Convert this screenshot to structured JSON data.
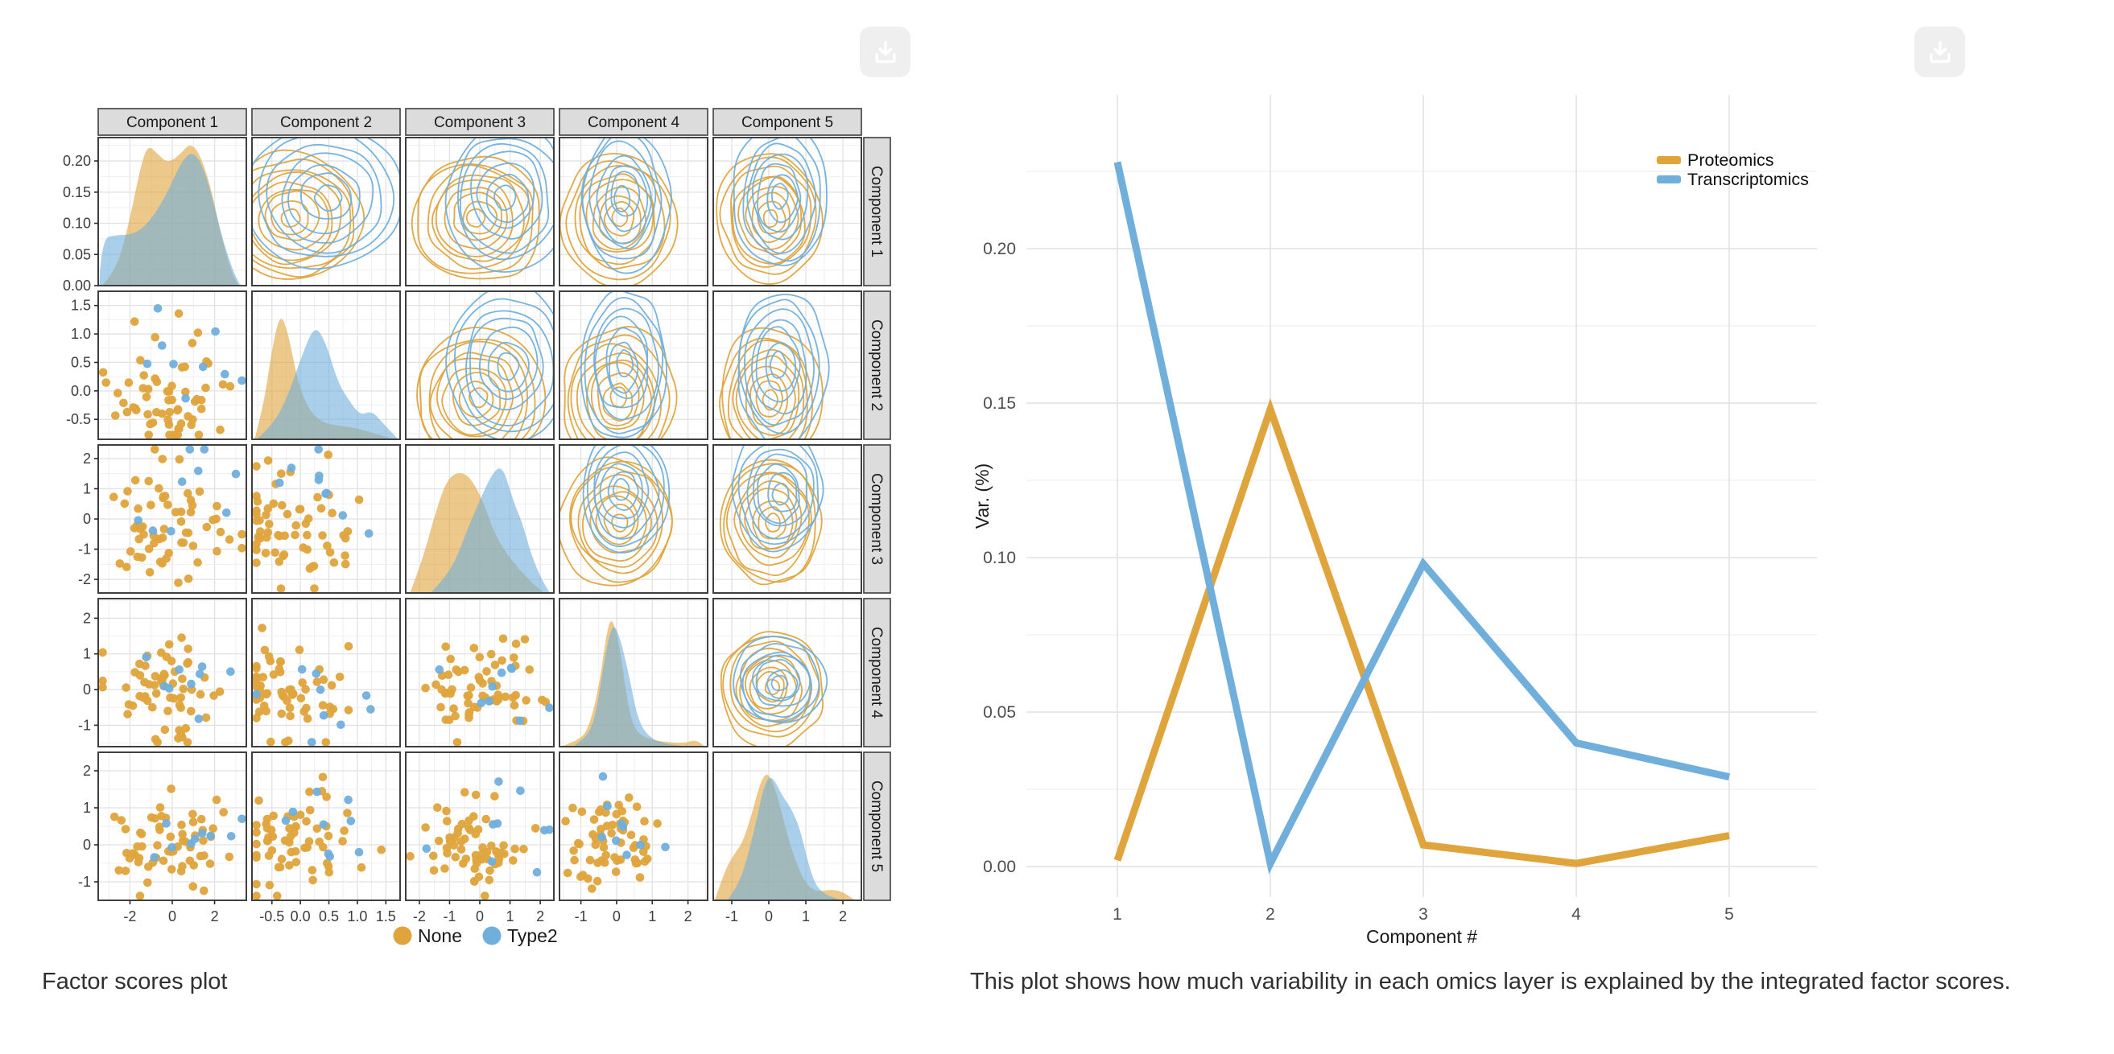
{
  "ui": {
    "background": "#ffffff",
    "download_button": {
      "color": "#3A80C2",
      "icon": "download-icon",
      "icon_color": "#ffffff"
    }
  },
  "colors": {
    "orange": "#DFA43C",
    "blue": "#70AFDC",
    "grid_major": "#E2E2E2",
    "grid_minor": "#EFEFEF",
    "panel_border": "#3F3F3F",
    "strip_bg": "#DCDCDC",
    "tick_text": "#3D3D3D",
    "axis_text": "#1A1A1A"
  },
  "left_figure": {
    "caption": "Factor scores plot",
    "legend": [
      {
        "label": "None",
        "color": "#DFA43C"
      },
      {
        "label": "Type2",
        "color": "#70AFDC"
      }
    ]
  },
  "right_figure": {
    "caption": "This plot shows how much variability in each omics layer is explained by the integrated factor scores."
  },
  "chart_data": [
    {
      "type": "pairs_matrix",
      "title": "Factor scores plot",
      "diagonal": "density",
      "upper": "contour",
      "lower": "scatter",
      "seed": 7,
      "variables": [
        {
          "name": "Component 1",
          "range": [
            -3.5,
            3.5
          ],
          "ticks": [
            -2,
            0,
            2
          ],
          "tick_labels": [
            "-2",
            "0",
            "2"
          ]
        },
        {
          "name": "Component 2",
          "range": [
            -0.85,
            1.75
          ],
          "ticks": [
            -0.5,
            0,
            0.5,
            1,
            1.5
          ],
          "tick_labels": [
            "-0.5",
            "0.0",
            "0.5",
            "1.0",
            "1.5"
          ]
        },
        {
          "name": "Component 3",
          "range": [
            -2.45,
            2.45
          ],
          "ticks": [
            -2,
            -1,
            0,
            1,
            2
          ],
          "tick_labels": [
            "-2",
            "-1",
            "0",
            "1",
            "2"
          ]
        },
        {
          "name": "Component 4",
          "range": [
            -1.6,
            2.55
          ],
          "ticks": [
            -1,
            0,
            1,
            2
          ],
          "tick_labels": [
            "-1",
            "0",
            "1",
            "2"
          ]
        },
        {
          "name": "Component 5",
          "range": [
            -1.5,
            2.5
          ],
          "ticks": [
            -1,
            0,
            1,
            2
          ],
          "tick_labels": [
            "-1",
            "0",
            "1",
            "2"
          ]
        }
      ],
      "density_axis": {
        "range": [
          0,
          0.2375
        ],
        "ticks": [
          0,
          0.05,
          0.1,
          0.15,
          0.2
        ],
        "tick_labels": [
          "0.00",
          "0.05",
          "0.10",
          "0.15",
          "0.20"
        ]
      },
      "groups": [
        {
          "name": "None",
          "color": "#DFA43C",
          "n": 62,
          "means": [
            -0.3,
            -0.15,
            -0.1,
            0.05,
            0.05
          ],
          "sds": [
            1.35,
            0.55,
            0.95,
            0.7,
            0.62
          ],
          "rings": 9
        },
        {
          "name": "Type2",
          "color": "#70AFDC",
          "n": 9,
          "means": [
            0.7,
            0.45,
            0.9,
            0.2,
            0.3
          ],
          "sds": [
            1.5,
            0.6,
            0.9,
            0.55,
            0.55
          ],
          "rings": 7
        }
      ],
      "densities": {
        "Component 1": {
          "None": [
            [
              -3.3,
              0
            ],
            [
              -2.7,
              0.02
            ],
            [
              -2.1,
              0.09
            ],
            [
              -1.5,
              0.19
            ],
            [
              -1.15,
              0.225
            ],
            [
              -0.7,
              0.21
            ],
            [
              -0.2,
              0.195
            ],
            [
              0.4,
              0.21
            ],
            [
              0.85,
              0.228
            ],
            [
              1.3,
              0.21
            ],
            [
              1.8,
              0.16
            ],
            [
              2.3,
              0.08
            ],
            [
              2.8,
              0.02
            ],
            [
              3.1,
              0
            ]
          ],
          "Type2": [
            [
              -3.45,
              0
            ],
            [
              -3.35,
              0.075
            ],
            [
              -2.6,
              0.08
            ],
            [
              -2.0,
              0.08
            ],
            [
              -1.4,
              0.09
            ],
            [
              -0.8,
              0.115
            ],
            [
              -0.2,
              0.15
            ],
            [
              0.4,
              0.195
            ],
            [
              0.9,
              0.215
            ],
            [
              1.4,
              0.195
            ],
            [
              1.9,
              0.14
            ],
            [
              2.4,
              0.07
            ],
            [
              2.9,
              0.02
            ],
            [
              3.2,
              0
            ]
          ]
        },
        "Component 2": {
          "None": [
            [
              -0.8,
              0
            ],
            [
              -0.65,
              0.25
            ],
            [
              -0.5,
              0.7
            ],
            [
              -0.35,
              1.0
            ],
            [
              -0.2,
              0.8
            ],
            [
              -0.05,
              0.45
            ],
            [
              0.15,
              0.22
            ],
            [
              0.4,
              0.12
            ],
            [
              0.7,
              0.1
            ],
            [
              1.0,
              0.08
            ],
            [
              1.3,
              0.04
            ],
            [
              1.6,
              0
            ]
          ],
          "Type2": [
            [
              -0.75,
              0
            ],
            [
              -0.5,
              0.1
            ],
            [
              -0.25,
              0.3
            ],
            [
              0.0,
              0.62
            ],
            [
              0.25,
              0.9
            ],
            [
              0.45,
              0.75
            ],
            [
              0.65,
              0.45
            ],
            [
              0.85,
              0.3
            ],
            [
              1.05,
              0.18
            ],
            [
              1.25,
              0.22
            ],
            [
              1.45,
              0.12
            ],
            [
              1.7,
              0
            ]
          ]
        },
        "Component 3": {
          "None": [
            [
              -2.3,
              0
            ],
            [
              -1.9,
              0.25
            ],
            [
              -1.5,
              0.6
            ],
            [
              -1.1,
              0.88
            ],
            [
              -0.7,
              0.95
            ],
            [
              -0.3,
              0.9
            ],
            [
              0.1,
              0.72
            ],
            [
              0.5,
              0.45
            ],
            [
              0.9,
              0.3
            ],
            [
              1.3,
              0.18
            ],
            [
              1.7,
              0.08
            ],
            [
              2.1,
              0
            ]
          ],
          "Type2": [
            [
              -1.6,
              0
            ],
            [
              -1.2,
              0.1
            ],
            [
              -0.8,
              0.25
            ],
            [
              -0.4,
              0.5
            ],
            [
              0.0,
              0.72
            ],
            [
              0.4,
              0.93
            ],
            [
              0.75,
              1.0
            ],
            [
              1.1,
              0.72
            ],
            [
              1.4,
              0.55
            ],
            [
              1.7,
              0.3
            ],
            [
              2.0,
              0.12
            ],
            [
              2.3,
              0
            ]
          ]
        },
        "Component 4": {
          "None": [
            [
              -1.5,
              0
            ],
            [
              -1.1,
              0.04
            ],
            [
              -0.8,
              0.12
            ],
            [
              -0.5,
              0.45
            ],
            [
              -0.25,
              0.95
            ],
            [
              -0.1,
              1.0
            ],
            [
              0.1,
              0.75
            ],
            [
              0.3,
              0.35
            ],
            [
              0.5,
              0.12
            ],
            [
              0.9,
              0.05
            ],
            [
              1.4,
              0.03
            ],
            [
              1.9,
              0.02
            ],
            [
              2.2,
              0.05
            ],
            [
              2.45,
              0
            ]
          ],
          "Type2": [
            [
              -1.2,
              0
            ],
            [
              -0.9,
              0.05
            ],
            [
              -0.6,
              0.2
            ],
            [
              -0.3,
              0.75
            ],
            [
              -0.1,
              0.97
            ],
            [
              0.1,
              0.85
            ],
            [
              0.35,
              0.55
            ],
            [
              0.6,
              0.2
            ],
            [
              0.9,
              0.07
            ],
            [
              1.3,
              0.02
            ],
            [
              1.8,
              0
            ]
          ]
        },
        "Component 5": {
          "None": [
            [
              -1.45,
              0
            ],
            [
              -1.2,
              0.22
            ],
            [
              -0.95,
              0.35
            ],
            [
              -0.7,
              0.45
            ],
            [
              -0.45,
              0.68
            ],
            [
              -0.2,
              0.95
            ],
            [
              0.0,
              1.0
            ],
            [
              0.25,
              0.8
            ],
            [
              0.5,
              0.5
            ],
            [
              0.75,
              0.28
            ],
            [
              1.0,
              0.12
            ],
            [
              1.3,
              0.06
            ],
            [
              1.7,
              0.08
            ],
            [
              2.0,
              0.06
            ],
            [
              2.3,
              0
            ]
          ],
          "Type2": [
            [
              -1.1,
              0
            ],
            [
              -0.85,
              0.1
            ],
            [
              -0.6,
              0.3
            ],
            [
              -0.35,
              0.6
            ],
            [
              -0.1,
              0.93
            ],
            [
              0.1,
              0.97
            ],
            [
              0.35,
              0.82
            ],
            [
              0.6,
              0.72
            ],
            [
              0.85,
              0.55
            ],
            [
              1.05,
              0.3
            ],
            [
              1.25,
              0.12
            ],
            [
              1.5,
              0.04
            ],
            [
              1.9,
              0
            ]
          ]
        }
      },
      "legend": [
        {
          "label": "None",
          "color": "#DFA43C"
        },
        {
          "label": "Type2",
          "color": "#70AFDC"
        }
      ]
    },
    {
      "type": "line",
      "x": [
        1,
        2,
        3,
        4,
        5
      ],
      "x_tick_labels": [
        "1",
        "2",
        "3",
        "4",
        "5"
      ],
      "series": [
        {
          "name": "Proteomics",
          "color": "#DFA43C",
          "values": [
            0.002,
            0.148,
            0.007,
            0.001,
            0.01
          ]
        },
        {
          "name": "Transcriptomics",
          "color": "#70AFDC",
          "values": [
            0.228,
            0.001,
            0.098,
            0.04,
            0.029
          ]
        }
      ],
      "xlabel": "Component #",
      "ylabel": "Var. (%)",
      "y_ticks": [
        0,
        0.05,
        0.1,
        0.15,
        0.2
      ],
      "y_tick_labels": [
        "0.00",
        "0.05",
        "0.10",
        "0.15",
        "0.20"
      ],
      "y_minor_step": 0.025,
      "ylim": [
        -0.0105,
        0.2495
      ],
      "grid": true,
      "legend_position": "top-right",
      "line_width": 9
    }
  ]
}
